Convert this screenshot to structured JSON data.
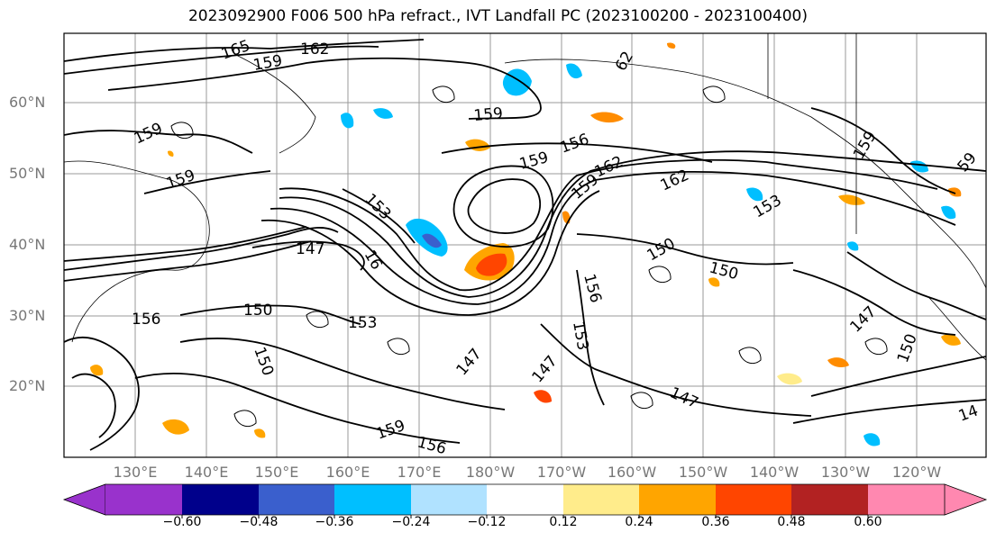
{
  "title": "2023092900 F006 500 hPa refract., IVT Landfall PC (2023100200 - 2023100400)",
  "latitude_labels": [
    "60°N",
    "50°N",
    "40°N",
    "30°N",
    "20°N"
  ],
  "longitude_labels": [
    "130°E",
    "140°E",
    "150°E",
    "160°E",
    "170°E",
    "180°W",
    "170°W",
    "160°W",
    "150°W",
    "140°W",
    "130°W",
    "120°W"
  ],
  "colorbar": {
    "tick_labels": [
      "−0.60",
      "−0.48",
      "−0.36",
      "−0.24",
      "−0.12",
      "0.12",
      "0.24",
      "0.36",
      "0.48",
      "0.60"
    ],
    "colors": [
      "#9932cc",
      "#00008b",
      "#3a5fcd",
      "#00bfff",
      "#b0e2ff",
      "#ffffff",
      "#ffec8b",
      "#ffa500",
      "#ff4500",
      "#b22222",
      "#ff88b0"
    ]
  },
  "contour_labels": [
    {
      "text": "165",
      "color": "#000"
    },
    {
      "text": "162",
      "color": "#000"
    },
    {
      "text": "159",
      "color": "#000"
    },
    {
      "text": "159",
      "color": "#000"
    },
    {
      "text": "159",
      "color": "#000"
    },
    {
      "text": "159",
      "color": "#000"
    },
    {
      "text": "153",
      "color": "#000"
    },
    {
      "text": "147",
      "color": "#000"
    },
    {
      "text": "16",
      "color": "#000"
    },
    {
      "text": "159",
      "color": "#000"
    },
    {
      "text": "156",
      "color": "#000"
    },
    {
      "text": "162",
      "color": "#000"
    },
    {
      "text": "159",
      "color": "#000"
    },
    {
      "text": "162",
      "color": "#000"
    },
    {
      "text": "153",
      "color": "#000"
    },
    {
      "text": "150",
      "color": "#000"
    },
    {
      "text": "150",
      "color": "#000"
    },
    {
      "text": "156",
      "color": "#000"
    },
    {
      "text": "153",
      "color": "#000"
    },
    {
      "text": "147",
      "color": "#000"
    },
    {
      "text": "147",
      "color": "#000"
    },
    {
      "text": "147",
      "color": "#000"
    },
    {
      "text": "150",
      "color": "#000"
    },
    {
      "text": "153",
      "color": "#000"
    },
    {
      "text": "156",
      "color": "#000"
    },
    {
      "text": "150",
      "color": "#000"
    },
    {
      "text": "159",
      "color": "#000"
    },
    {
      "text": "156",
      "color": "#000"
    },
    {
      "text": "147",
      "color": "#000"
    },
    {
      "text": "150",
      "color": "#000"
    },
    {
      "text": "159",
      "color": "#000"
    },
    {
      "text": "59",
      "color": "#000"
    },
    {
      "text": "14",
      "color": "#000"
    },
    {
      "text": "62",
      "color": "#000"
    }
  ]
}
